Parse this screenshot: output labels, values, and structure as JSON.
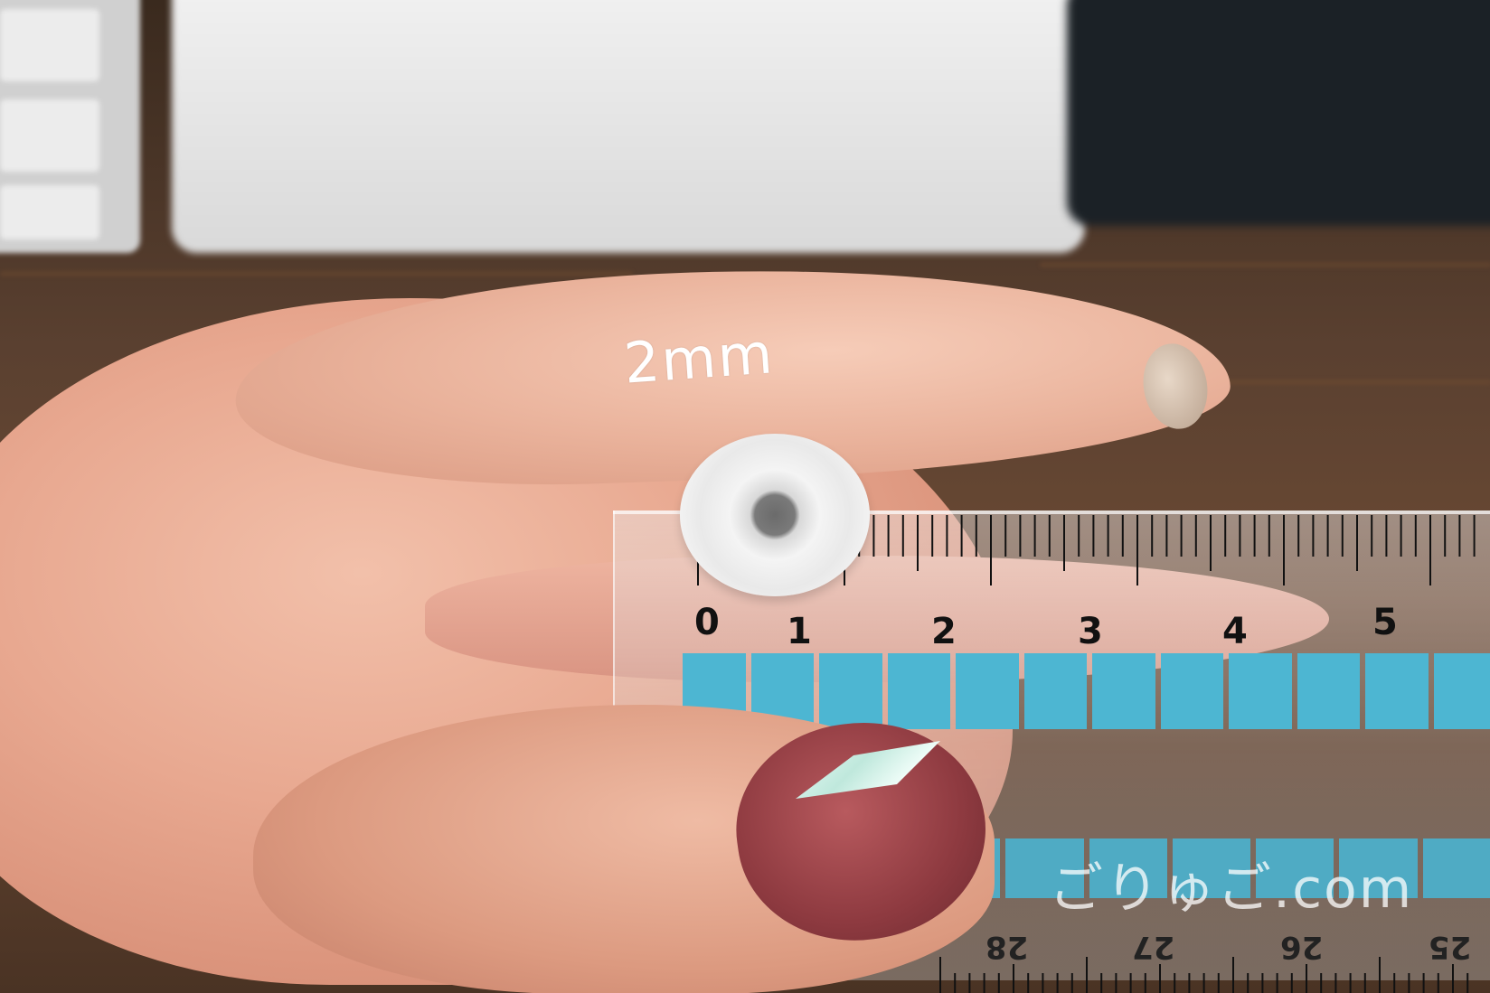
{
  "overlay_label": "2mm",
  "watermark": "ごりゅご.com",
  "ruler": {
    "top_numbers": [
      "0",
      "1",
      "2",
      "3",
      "4",
      "5"
    ],
    "bottom_numbers": [
      "28",
      "27",
      "26",
      "25"
    ]
  }
}
